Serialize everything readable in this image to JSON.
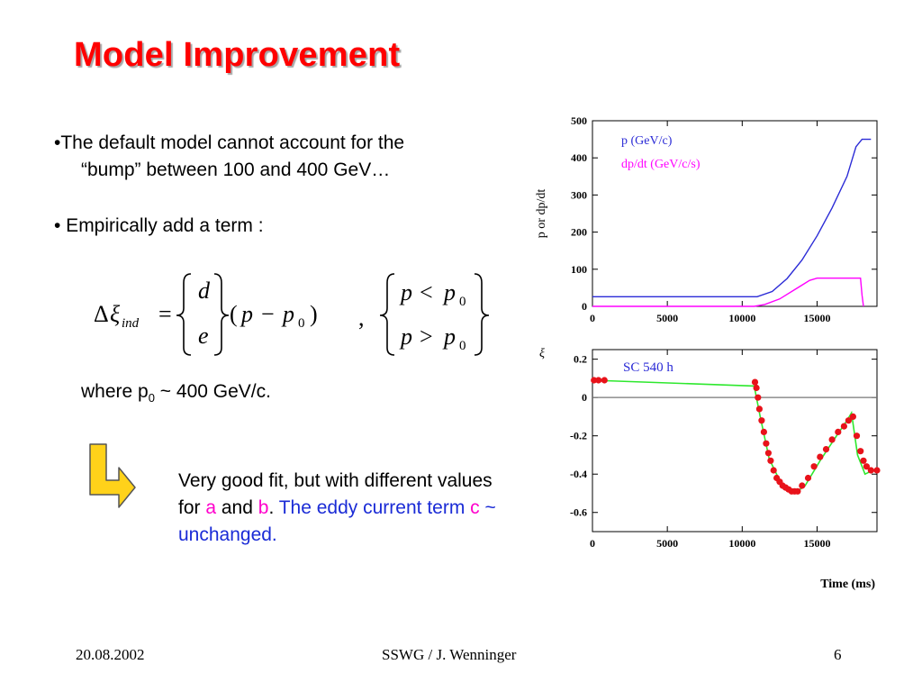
{
  "slide": {
    "title": "Model Improvement",
    "bullet1_line1": "•The default model cannot account for the",
    "bullet1_line2": "“bump” between 100 and 400 GeV…",
    "bullet2": "• Empirically add a term :",
    "where_prefix": "where p",
    "where_sub": "0",
    "where_suffix": " ~ 400 GeV/c.",
    "fit": {
      "part1": "Very good fit, but with different values for ",
      "a": "a",
      "and": " and ",
      "b": "b",
      "dot": ". ",
      "blue1": "The eddy current term ",
      "c": "c",
      "blue2": " ~ unchanged."
    }
  },
  "equation": {
    "delta": "Δ",
    "xi": "ξ",
    "sub": "ind",
    "equals": "=",
    "top_coef": "d",
    "bottom_coef": "e",
    "open_paren": "(",
    "p": "p",
    "minus": "−",
    "p0": "p",
    "p0_sub": "0",
    "close_paren": ")",
    "comma": ",",
    "cond_top_p": "p",
    "cond_top_op": "<",
    "cond_top_p0": "p",
    "cond_top_sub": "0",
    "cond_bottom_p": "p",
    "cond_bottom_op": ">",
    "cond_bottom_p0": "p",
    "cond_bottom_sub": "0"
  },
  "footer": {
    "date": "20.08.2002",
    "center": "SSWG / J. Wenninger",
    "page": "6"
  },
  "colors": {
    "title": "#ff0000",
    "p_series": "#2b2bd6",
    "dpdt_series": "#ff00ff",
    "fit_line": "#2ee82e",
    "data_points": "#e8121a",
    "arrow_fill": "#ffd21a"
  },
  "chart_data": [
    {
      "type": "line",
      "ylabel": "p or dp/dt",
      "xlim": [
        0,
        19000
      ],
      "ylim": [
        0,
        500
      ],
      "xticks": [
        0,
        5000,
        10000,
        15000
      ],
      "xtick_labels": [
        "0",
        "5000",
        "10000",
        "15000"
      ],
      "yticks": [
        0,
        100,
        200,
        300,
        400,
        500
      ],
      "ytick_labels": [
        "0",
        "100",
        "200",
        "300",
        "400",
        "500"
      ],
      "legend_placement": "top-left",
      "series": [
        {
          "name": "p (GeV/c)",
          "color": "#2b2bd6",
          "x": [
            0,
            11000,
            12000,
            13000,
            14000,
            15000,
            16000,
            17000,
            17600,
            18000,
            18600
          ],
          "values": [
            26,
            26,
            40,
            75,
            125,
            190,
            265,
            350,
            430,
            450,
            450
          ]
        },
        {
          "name": "dp/dt (GeV/c/s)",
          "color": "#ff00ff",
          "x": [
            0,
            10800,
            11500,
            12500,
            13500,
            14500,
            15000,
            17900,
            18000,
            18100
          ],
          "values": [
            0,
            0,
            5,
            20,
            45,
            70,
            76,
            76,
            30,
            0
          ]
        }
      ]
    },
    {
      "type": "scatter",
      "title": "SC 540 h",
      "ylabel": "ξ",
      "xlabel": "Time (ms)",
      "xlim": [
        0,
        19000
      ],
      "ylim": [
        -0.7,
        0.25
      ],
      "xticks": [
        0,
        5000,
        10000,
        15000
      ],
      "xtick_labels": [
        "0",
        "5000",
        "10000",
        "15000"
      ],
      "yticks": [
        0.2,
        0,
        -0.2,
        -0.4,
        -0.6
      ],
      "ytick_labels": [
        "0.2",
        "0",
        "-0.2",
        "-0.4",
        "-0.6"
      ],
      "reference_line_y": 0,
      "series": [
        {
          "kind": "line",
          "color": "#2ee82e",
          "x": [
            0,
            10800,
            11200,
            11800,
            12600,
            13500,
            14200,
            15200,
            16300,
            17000,
            17300,
            17700,
            18200,
            19000
          ],
          "values": [
            0.09,
            0.06,
            -0.1,
            -0.32,
            -0.45,
            -0.5,
            -0.46,
            -0.33,
            -0.2,
            -0.12,
            -0.08,
            -0.3,
            -0.4,
            -0.37
          ]
        },
        {
          "kind": "points",
          "color": "#e8121a",
          "x": [
            100,
            400,
            800,
            10850,
            10950,
            11050,
            11150,
            11300,
            11450,
            11600,
            11750,
            11900,
            12100,
            12300,
            12500,
            12700,
            12900,
            13100,
            13300,
            13500,
            13700,
            14000,
            14400,
            14800,
            15200,
            15600,
            16000,
            16400,
            16800,
            17100,
            17400,
            17650,
            17900,
            18100,
            18300,
            18600,
            19000
          ],
          "values": [
            0.09,
            0.09,
            0.09,
            0.08,
            0.05,
            0.0,
            -0.06,
            -0.12,
            -0.18,
            -0.24,
            -0.29,
            -0.33,
            -0.38,
            -0.42,
            -0.44,
            -0.46,
            -0.47,
            -0.48,
            -0.49,
            -0.49,
            -0.49,
            -0.46,
            -0.42,
            -0.36,
            -0.31,
            -0.27,
            -0.22,
            -0.18,
            -0.15,
            -0.12,
            -0.1,
            -0.2,
            -0.28,
            -0.33,
            -0.36,
            -0.38,
            -0.38
          ]
        }
      ]
    }
  ]
}
